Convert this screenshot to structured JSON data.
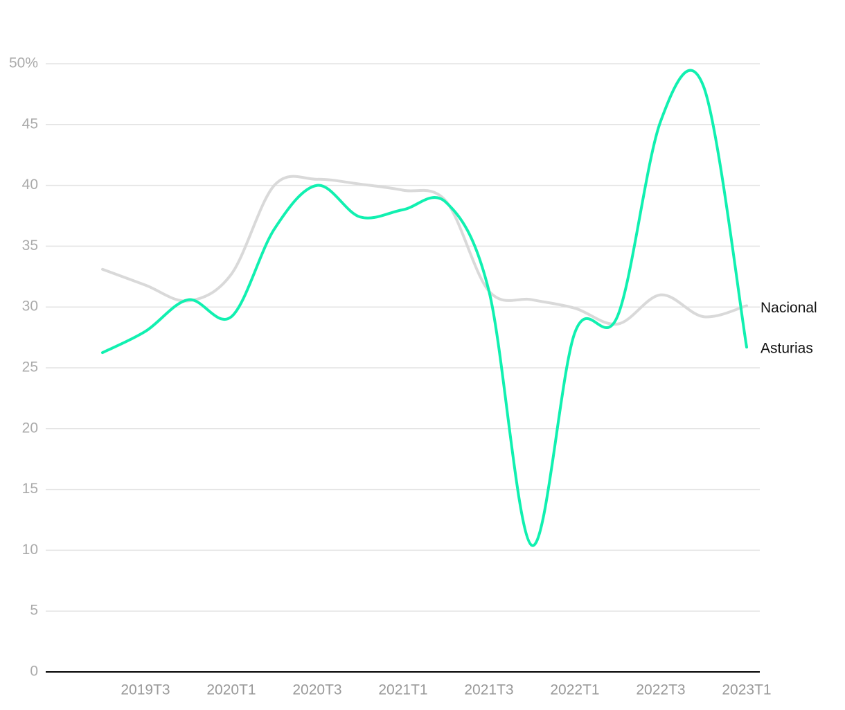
{
  "chart_data": {
    "type": "line",
    "categories": [
      null,
      "2019T3",
      null,
      "2020T1",
      null,
      "2020T3",
      null,
      "2021T1",
      null,
      "2021T3",
      null,
      "2022T1",
      null,
      "2022T3",
      null,
      "2023T1"
    ],
    "series": [
      {
        "name": "Nacional",
        "color": "#d9d9d9",
        "values": [
          33.1,
          31.8,
          30.5,
          32.7,
          40.0,
          40.5,
          40.1,
          39.6,
          38.7,
          31.3,
          30.6,
          29.9,
          28.6,
          31.0,
          29.2,
          30.1
        ]
      },
      {
        "name": "Asturias",
        "color": "#11f0b0",
        "values": [
          26.25,
          28.0,
          30.6,
          29.2,
          36.4,
          40.0,
          37.4,
          38.0,
          38.6,
          31.3,
          10.4,
          27.9,
          29.3,
          45.3,
          48.1,
          26.7
        ]
      }
    ],
    "ylim": [
      0,
      50
    ],
    "yticks": [
      0,
      5,
      10,
      15,
      20,
      25,
      30,
      35,
      40,
      45,
      {
        "value": 50,
        "label": "50%"
      }
    ],
    "grid": true
  }
}
